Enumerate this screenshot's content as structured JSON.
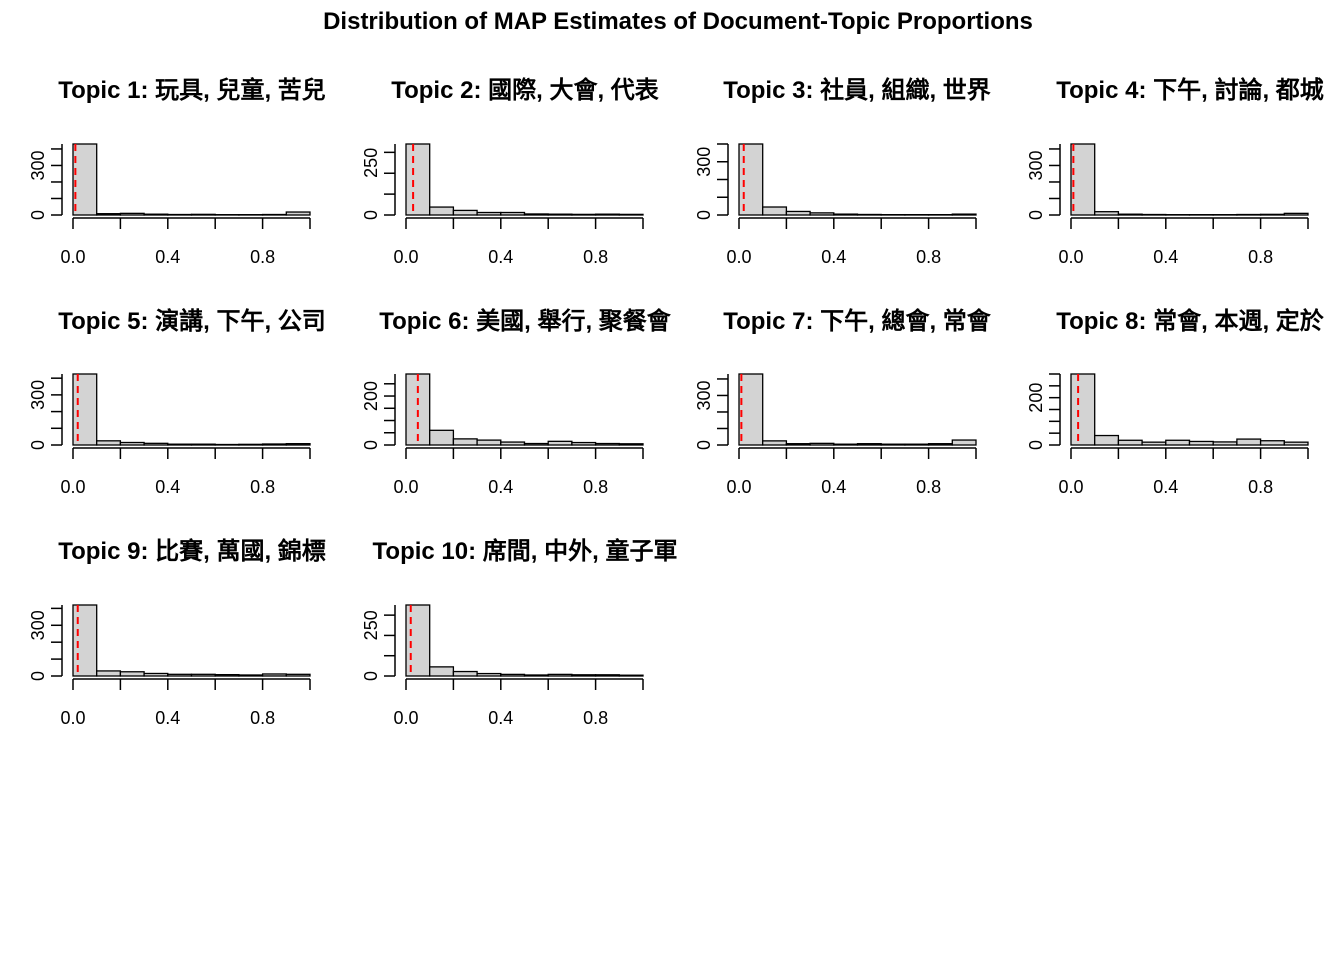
{
  "figure": {
    "title": "Distribution of MAP Estimates of Document-Topic Proportions"
  },
  "colors": {
    "bar_fill": "#d3d3d3",
    "bar_stroke": "#000000",
    "mean_line": "#ff0000",
    "background": "#ffffff"
  },
  "chart_data": [
    {
      "type": "histogram",
      "title": "Topic 1: 玩具, 兒童, 苦兒",
      "bins": [
        0,
        0.1,
        0.2,
        0.3,
        0.4,
        0.5,
        0.6,
        0.7,
        0.8,
        0.9,
        1.0
      ],
      "values": [
        430,
        8,
        10,
        5,
        3,
        4,
        2,
        2,
        3,
        18
      ],
      "mean": 0.01,
      "xlim": [
        0,
        1
      ],
      "ylim": [
        0,
        430
      ],
      "x_ticks": [
        "0.0",
        "0.4",
        "0.8"
      ],
      "y_ticks": [
        "0",
        "300"
      ]
    },
    {
      "type": "histogram",
      "title": "Topic 2: 國際, 大會, 代表",
      "bins": [
        0,
        0.1,
        0.2,
        0.3,
        0.4,
        0.5,
        0.6,
        0.7,
        0.8,
        0.9,
        1.0
      ],
      "values": [
        340,
        38,
        22,
        12,
        12,
        5,
        4,
        3,
        4,
        3
      ],
      "mean": 0.03,
      "xlim": [
        0,
        1
      ],
      "ylim": [
        0,
        340
      ],
      "x_ticks": [
        "0.0",
        "0.4",
        "0.8"
      ],
      "y_ticks": [
        "0",
        "250"
      ]
    },
    {
      "type": "histogram",
      "title": "Topic 3: 社員, 組織, 世界",
      "bins": [
        0,
        0.1,
        0.2,
        0.3,
        0.4,
        0.5,
        0.6,
        0.7,
        0.8,
        0.9,
        1.0
      ],
      "values": [
        400,
        45,
        20,
        12,
        5,
        3,
        2,
        2,
        2,
        5
      ],
      "mean": 0.02,
      "xlim": [
        0,
        1
      ],
      "ylim": [
        0,
        400
      ],
      "x_ticks": [
        "0.0",
        "0.4",
        "0.8"
      ],
      "y_ticks": [
        "0",
        "300"
      ]
    },
    {
      "type": "histogram",
      "title": "Topic 4: 下午, 討論, 都城",
      "bins": [
        0,
        0.1,
        0.2,
        0.3,
        0.4,
        0.5,
        0.6,
        0.7,
        0.8,
        0.9,
        1.0
      ],
      "values": [
        430,
        20,
        5,
        3,
        2,
        2,
        2,
        3,
        4,
        10
      ],
      "mean": 0.01,
      "xlim": [
        0,
        1
      ],
      "ylim": [
        0,
        430
      ],
      "x_ticks": [
        "0.0",
        "0.4",
        "0.8"
      ],
      "y_ticks": [
        "0",
        "300"
      ]
    },
    {
      "type": "histogram",
      "title": "Topic 5: 演講, 下午, 公司",
      "bins": [
        0,
        0.1,
        0.2,
        0.3,
        0.4,
        0.5,
        0.6,
        0.7,
        0.8,
        0.9,
        1.0
      ],
      "values": [
        425,
        25,
        15,
        10,
        5,
        5,
        3,
        4,
        6,
        8
      ],
      "mean": 0.02,
      "xlim": [
        0,
        1
      ],
      "ylim": [
        0,
        425
      ],
      "x_ticks": [
        "0.0",
        "0.4",
        "0.8"
      ],
      "y_ticks": [
        "0",
        "300"
      ]
    },
    {
      "type": "histogram",
      "title": "Topic 6: 美國, 舉行, 聚餐會",
      "bins": [
        0,
        0.1,
        0.2,
        0.3,
        0.4,
        0.5,
        0.6,
        0.7,
        0.8,
        0.9,
        1.0
      ],
      "values": [
        290,
        60,
        25,
        20,
        12,
        6,
        15,
        10,
        6,
        5
      ],
      "mean": 0.05,
      "xlim": [
        0,
        1
      ],
      "ylim": [
        0,
        290
      ],
      "x_ticks": [
        "0.0",
        "0.4",
        "0.8"
      ],
      "y_ticks": [
        "0",
        "200"
      ]
    },
    {
      "type": "histogram",
      "title": "Topic 7: 下午, 總會, 常會",
      "bins": [
        0,
        0.1,
        0.2,
        0.3,
        0.4,
        0.5,
        0.6,
        0.7,
        0.8,
        0.9,
        1.0
      ],
      "values": [
        430,
        25,
        8,
        10,
        5,
        8,
        5,
        5,
        8,
        30
      ],
      "mean": 0.01,
      "xlim": [
        0,
        1
      ],
      "ylim": [
        0,
        430
      ],
      "x_ticks": [
        "0.0",
        "0.4",
        "0.8"
      ],
      "y_ticks": [
        "0",
        "300"
      ]
    },
    {
      "type": "histogram",
      "title": "Topic 8: 常會, 本週, 定於",
      "bins": [
        0,
        0.1,
        0.2,
        0.3,
        0.4,
        0.5,
        0.6,
        0.7,
        0.8,
        0.9,
        1.0
      ],
      "values": [
        300,
        40,
        20,
        12,
        20,
        15,
        13,
        25,
        18,
        12
      ],
      "mean": 0.03,
      "xlim": [
        0,
        1
      ],
      "ylim": [
        0,
        300
      ],
      "x_ticks": [
        "0.0",
        "0.4",
        "0.8"
      ],
      "y_ticks": [
        "0",
        "200"
      ]
    },
    {
      "type": "histogram",
      "title": "Topic 9: 比賽, 萬國, 錦標",
      "bins": [
        0,
        0.1,
        0.2,
        0.3,
        0.4,
        0.5,
        0.6,
        0.7,
        0.8,
        0.9,
        1.0
      ],
      "values": [
        420,
        30,
        25,
        15,
        10,
        10,
        8,
        6,
        12,
        10
      ],
      "mean": 0.02,
      "xlim": [
        0,
        1
      ],
      "ylim": [
        0,
        420
      ],
      "x_ticks": [
        "0.0",
        "0.4",
        "0.8"
      ],
      "y_ticks": [
        "0",
        "300"
      ]
    },
    {
      "type": "histogram",
      "title": "Topic 10: 席間, 中外, 童子軍",
      "bins": [
        0,
        0.1,
        0.2,
        0.3,
        0.4,
        0.5,
        0.6,
        0.7,
        0.8,
        0.9,
        1.0
      ],
      "values": [
        350,
        45,
        22,
        12,
        8,
        5,
        8,
        6,
        6,
        4
      ],
      "mean": 0.02,
      "xlim": [
        0,
        1
      ],
      "ylim": [
        0,
        350
      ],
      "x_ticks": [
        "0.0",
        "0.4",
        "0.8"
      ],
      "y_ticks": [
        "0",
        "250"
      ]
    }
  ]
}
